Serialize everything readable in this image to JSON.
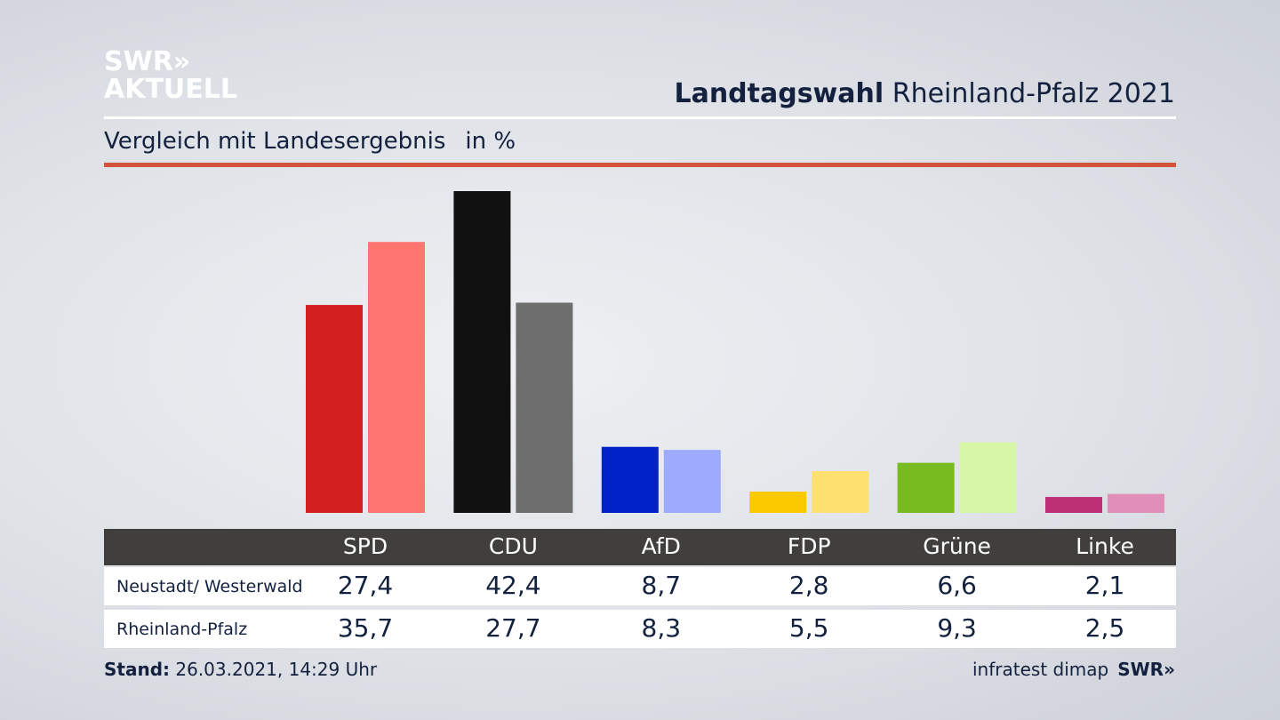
{
  "logo": {
    "line1": "SWR»",
    "line2": "AKTUELL"
  },
  "header": {
    "title_bold": "Landtagswahl",
    "title_rest": "Rheinland-Pfalz 2021",
    "subtitle": "Vergleich mit Landesergebnis",
    "unit": "in %"
  },
  "chart_data": {
    "type": "bar",
    "title": "Landtagswahl Rheinland-Pfalz 2021 – Vergleich mit Landesergebnis (in %)",
    "categories": [
      "SPD",
      "CDU",
      "AfD",
      "FDP",
      "Grüne",
      "Linke"
    ],
    "series": [
      {
        "name": "Neustadt/ Westerwald",
        "values": [
          27.4,
          42.4,
          8.7,
          2.8,
          6.6,
          2.1
        ],
        "display": [
          "27,4",
          "42,4",
          "8,7",
          "2,8",
          "6,6",
          "2,1"
        ],
        "colors": [
          "#d42020",
          "#111111",
          "#0022c8",
          "#fcc800",
          "#78bb20",
          "#be3075"
        ]
      },
      {
        "name": "Rheinland-Pfalz",
        "values": [
          35.7,
          27.7,
          8.3,
          5.5,
          9.3,
          2.5
        ],
        "display": [
          "35,7",
          "27,7",
          "8,3",
          "5,5",
          "9,3",
          "2,5"
        ],
        "colors": [
          "#ff7570",
          "#6e6e6e",
          "#9eaafc",
          "#fde070",
          "#d8f6a8",
          "#e090b8"
        ]
      }
    ],
    "ylim": [
      0,
      42.4
    ]
  },
  "footer": {
    "stand_label": "Stand:",
    "stand_value": "26.03.2021, 14:29 Uhr",
    "source": "infratest dimap",
    "brand": "SWR»"
  }
}
